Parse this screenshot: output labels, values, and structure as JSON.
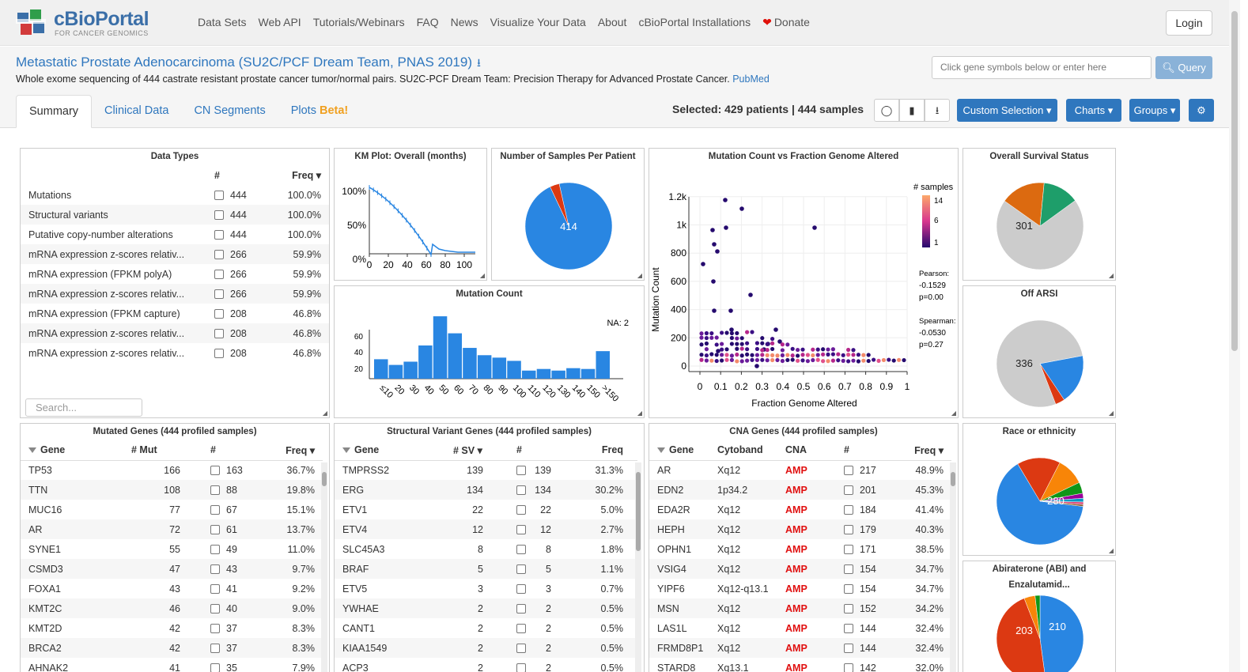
{
  "nav": {
    "brand": "cBioPortal",
    "brand_sub": "FOR CANCER GENOMICS",
    "items": [
      "Data Sets",
      "Web API",
      "Tutorials/Webinars",
      "FAQ",
      "News",
      "Visualize Your Data",
      "About",
      "cBioPortal Installations"
    ],
    "donate": "Donate",
    "login": "Login"
  },
  "study": {
    "title": "Metastatic Prostate Adenocarcinoma (SU2C/PCF Dream Team, PNAS 2019)",
    "description": "Whole exome sequencing of 444 castrate resistant prostate cancer tumor/normal pairs. SU2C-PCF Dream Team: Precision Therapy for Advanced Prostate Cancer.",
    "pubmed": "PubMed"
  },
  "query": {
    "placeholder": "Click gene symbols below or enter here",
    "button": "Query"
  },
  "tabs": [
    {
      "label": "Summary"
    },
    {
      "label": "Clinical Data"
    },
    {
      "label": "CN Segments"
    },
    {
      "label": "Plots",
      "badge": "Beta!"
    }
  ],
  "selection": {
    "label": "Selected:",
    "patients": "429 patients",
    "sep": "|",
    "samples": "444 samples"
  },
  "toolbar": {
    "custom": "Custom Selection",
    "charts": "Charts",
    "groups": "Groups"
  },
  "data_types": {
    "title": "Data Types",
    "col_count": "#",
    "col_freq": "Freq",
    "search_placeholder": "Search...",
    "rows": [
      [
        "Mutations",
        "444",
        "100.0%"
      ],
      [
        "Structural variants",
        "444",
        "100.0%"
      ],
      [
        "Putative copy-number alterations",
        "444",
        "100.0%"
      ],
      [
        "mRNA expression z-scores relativ...",
        "266",
        "59.9%"
      ],
      [
        "mRNA expression (FPKM polyA)",
        "266",
        "59.9%"
      ],
      [
        "mRNA expression z-scores relativ...",
        "266",
        "59.9%"
      ],
      [
        "mRNA expression (FPKM capture)",
        "208",
        "46.8%"
      ],
      [
        "mRNA expression z-scores relativ...",
        "208",
        "46.8%"
      ],
      [
        "mRNA expression z-scores relativ...",
        "208",
        "46.8%"
      ]
    ]
  },
  "km": {
    "title": "KM Plot: Overall (months)",
    "yticks": [
      "100%",
      "50%",
      "0%"
    ],
    "xticks": [
      "0",
      "20",
      "40",
      "60",
      "80",
      "100"
    ]
  },
  "samples_per_patient": {
    "title": "Number of Samples Per Patient",
    "label": "414",
    "chart_data": {
      "type": "pie",
      "values": [
        414,
        15
      ],
      "colors": [
        "#2986e2",
        "#dc3912"
      ]
    }
  },
  "scatter": {
    "title": "Mutation Count vs Fraction Genome Altered",
    "xlabel": "Fraction Genome Altered",
    "ylabel": "Mutation Count",
    "legend_title": "# samples",
    "legend_ticks": [
      "14",
      "6",
      "1"
    ],
    "pearson_label": "Pearson:",
    "pearson": "-0.1529",
    "pearson_p": "p=0.00",
    "spearman_label": "Spearman:",
    "spearman": "-0.0530",
    "spearman_p": "p=0.27",
    "xticks": [
      "0",
      "0.1",
      "0.2",
      "0.3",
      "0.4",
      "0.5",
      "0.6",
      "0.7",
      "0.8",
      "0.9",
      "1"
    ],
    "yticks": [
      "0",
      "200",
      "400",
      "600",
      "800",
      "1k",
      "1.2k"
    ]
  },
  "survival": {
    "title": "Overall Survival Status",
    "label": "301",
    "chart_data": {
      "type": "pie",
      "values": [
        301,
        72,
        58
      ],
      "colors": [
        "#cccccc",
        "#dc6a10",
        "#1e9e6a"
      ]
    }
  },
  "off_arsi": {
    "title": "Off ARSI",
    "label": "336",
    "chart_data": {
      "type": "pie",
      "values": [
        336,
        80,
        15
      ],
      "colors": [
        "#cccccc",
        "#2986e2",
        "#dc3912"
      ]
    }
  },
  "mutation_count": {
    "title": "Mutation Count",
    "na": "NA: 2",
    "yticks": [
      "60",
      "40",
      "20"
    ],
    "chart_data": {
      "type": "bar",
      "categories": [
        "≤10",
        "20",
        "30",
        "40",
        "50",
        "60",
        "70",
        "80",
        "90",
        "100",
        "110",
        "120",
        "130",
        "140",
        "150",
        ">150"
      ],
      "values": [
        24,
        17,
        21,
        41,
        77,
        56,
        38,
        29,
        26,
        22,
        10,
        12,
        10,
        13,
        12,
        34
      ],
      "ylim": [
        0,
        80
      ]
    }
  },
  "race": {
    "title": "Race or ethnicity",
    "label": "280",
    "chart_data": {
      "type": "pie",
      "values": [
        280,
        70,
        45,
        18,
        8,
        6,
        4,
        3
      ],
      "colors": [
        "#2986e2",
        "#dc3912",
        "#f88508",
        "#109618",
        "#990099",
        "#0099c6",
        "#dd4477",
        "#8b5a2b"
      ]
    }
  },
  "abi": {
    "title": "Abiraterone (ABI) and Enzalutamid...",
    "label_a": "210",
    "label_b": "203",
    "chart_data": {
      "type": "pie",
      "values": [
        210,
        203,
        18,
        8
      ],
      "colors": [
        "#2986e2",
        "#dc3912",
        "#f88508",
        "#109618"
      ]
    }
  },
  "mutated_genes": {
    "title": "Mutated Genes (444 profiled samples)",
    "cols": [
      "Gene",
      "# Mut",
      "#",
      "Freq"
    ],
    "rows": [
      [
        "TP53",
        "166",
        "163",
        "36.7%"
      ],
      [
        "TTN",
        "108",
        "88",
        "19.8%"
      ],
      [
        "MUC16",
        "77",
        "67",
        "15.1%"
      ],
      [
        "AR",
        "72",
        "61",
        "13.7%"
      ],
      [
        "SYNE1",
        "55",
        "49",
        "11.0%"
      ],
      [
        "CSMD3",
        "47",
        "43",
        "9.7%"
      ],
      [
        "FOXA1",
        "43",
        "41",
        "9.2%"
      ],
      [
        "KMT2C",
        "46",
        "40",
        "9.0%"
      ],
      [
        "KMT2D",
        "42",
        "37",
        "8.3%"
      ],
      [
        "BRCA2",
        "42",
        "37",
        "8.3%"
      ],
      [
        "AHNAK2",
        "41",
        "35",
        "7.9%"
      ]
    ]
  },
  "sv_genes": {
    "title": "Structural Variant Genes (444 profiled samples)",
    "cols": [
      "Gene",
      "# SV",
      "#",
      "Freq"
    ],
    "rows": [
      [
        "TMPRSS2",
        "139",
        "139",
        "31.3%"
      ],
      [
        "ERG",
        "134",
        "134",
        "30.2%"
      ],
      [
        "ETV1",
        "22",
        "22",
        "5.0%"
      ],
      [
        "ETV4",
        "12",
        "12",
        "2.7%"
      ],
      [
        "SLC45A3",
        "8",
        "8",
        "1.8%"
      ],
      [
        "BRAF",
        "5",
        "5",
        "1.1%"
      ],
      [
        "ETV5",
        "3",
        "3",
        "0.7%"
      ],
      [
        "YWHAE",
        "2",
        "2",
        "0.5%"
      ],
      [
        "CANT1",
        "2",
        "2",
        "0.5%"
      ],
      [
        "KIAA1549",
        "2",
        "2",
        "0.5%"
      ],
      [
        "ACP3",
        "2",
        "2",
        "0.5%"
      ]
    ]
  },
  "cna_genes": {
    "title": "CNA Genes (444 profiled samples)",
    "cols": [
      "Gene",
      "Cytoband",
      "CNA",
      "#",
      "Freq"
    ],
    "rows": [
      [
        "AR",
        "Xq12",
        "AMP",
        "217",
        "48.9%"
      ],
      [
        "EDN2",
        "1p34.2",
        "AMP",
        "201",
        "45.3%"
      ],
      [
        "EDA2R",
        "Xq12",
        "AMP",
        "184",
        "41.4%"
      ],
      [
        "HEPH",
        "Xq12",
        "AMP",
        "179",
        "40.3%"
      ],
      [
        "OPHN1",
        "Xq12",
        "AMP",
        "171",
        "38.5%"
      ],
      [
        "VSIG4",
        "Xq12",
        "AMP",
        "154",
        "34.7%"
      ],
      [
        "YIPF6",
        "Xq12-q13.1",
        "AMP",
        "154",
        "34.7%"
      ],
      [
        "MSN",
        "Xq12",
        "AMP",
        "152",
        "34.2%"
      ],
      [
        "LAS1L",
        "Xq12",
        "AMP",
        "144",
        "32.4%"
      ],
      [
        "FRMD8P1",
        "Xq12",
        "AMP",
        "144",
        "32.4%"
      ],
      [
        "STARD8",
        "Xq13.1",
        "AMP",
        "142",
        "32.0%"
      ]
    ]
  }
}
